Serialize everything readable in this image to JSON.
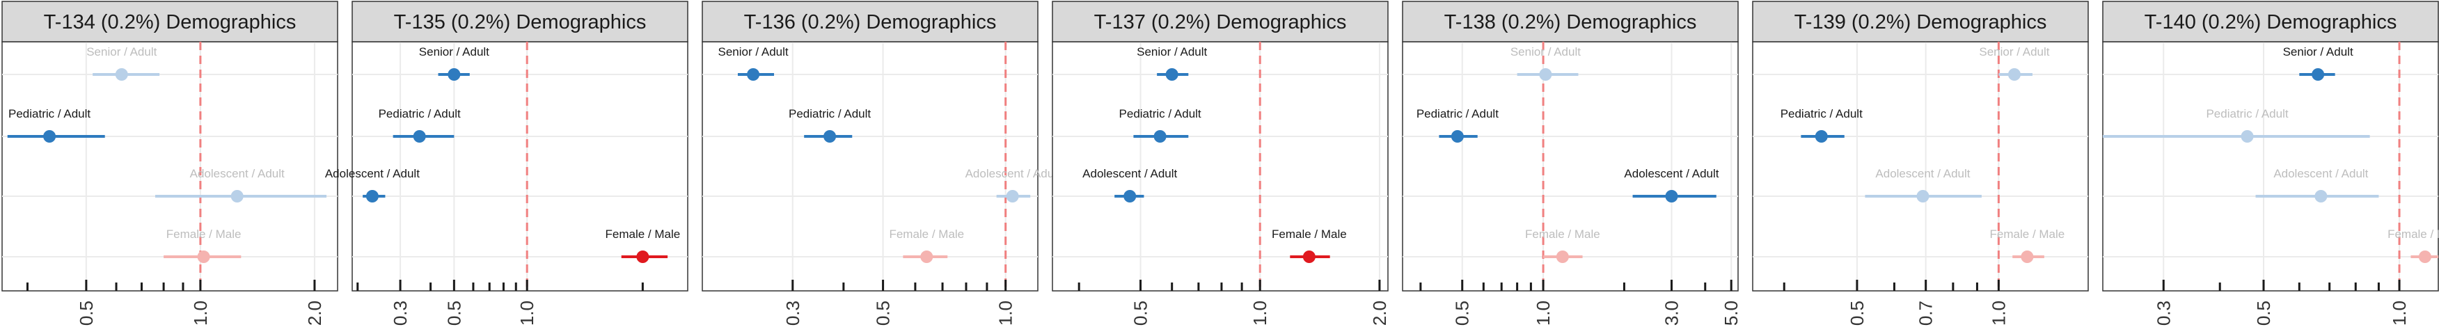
{
  "colors": {
    "strip_bg": "#d9d9d9",
    "blue": "#2e7bbf",
    "blue_faded": "#b8d0e8",
    "red": "#e0191f",
    "red_faded": "#f5b3b0",
    "ref_line": "#f08080",
    "grid": "#ebebeb",
    "panel_border": "#333333",
    "label_dark": "#1a1a1a",
    "label_faded": "#bdbdbd"
  },
  "chart_data": [
    {
      "type": "forest",
      "title": "T-134 (0.2%) Demographics",
      "x_scale": "log",
      "xlim": [
        0.3,
        2.3
      ],
      "reference_line": 1.0,
      "ticks": [
        0.5,
        1.0,
        2.0
      ],
      "tick_labels": [
        "0.5",
        "1.0",
        "2.0"
      ],
      "minor_ticks": [
        0.35,
        0.6,
        0.7,
        0.8,
        0.9
      ],
      "rows": [
        {
          "label": "Senior / Adult",
          "estimate": 0.62,
          "low": 0.52,
          "high": 0.78,
          "highlight": false,
          "color": "blue"
        },
        {
          "label": "Pediatric / Adult",
          "estimate": 0.4,
          "low": 0.31,
          "high": 0.56,
          "highlight": true,
          "color": "blue"
        },
        {
          "label": "Adolescent / Adult",
          "estimate": 1.25,
          "low": 0.76,
          "high": 2.15,
          "highlight": false,
          "color": "blue"
        },
        {
          "label": "Female / Male",
          "estimate": 1.02,
          "low": 0.8,
          "high": 1.28,
          "highlight": false,
          "color": "red"
        }
      ]
    },
    {
      "type": "forest",
      "title": "T-135 (0.2%) Demographics",
      "x_scale": "log",
      "xlim": [
        0.19,
        4.6
      ],
      "reference_line": 1.0,
      "ticks": [
        0.3,
        0.5,
        1.0
      ],
      "tick_labels": [
        "0.3",
        "0.5",
        "1.0"
      ],
      "minor_ticks": [
        0.2,
        0.4,
        0.6,
        0.7,
        0.8,
        0.9,
        3.0
      ],
      "rows": [
        {
          "label": "Senior / Adult",
          "estimate": 0.5,
          "low": 0.43,
          "high": 0.58,
          "highlight": true,
          "color": "blue"
        },
        {
          "label": "Pediatric / Adult",
          "estimate": 0.36,
          "low": 0.28,
          "high": 0.5,
          "highlight": true,
          "color": "blue"
        },
        {
          "label": "Adolescent / Adult",
          "estimate": 0.23,
          "low": 0.21,
          "high": 0.26,
          "highlight": true,
          "color": "blue"
        },
        {
          "label": "Female / Male",
          "estimate": 3.0,
          "low": 2.45,
          "high": 3.8,
          "highlight": true,
          "color": "red"
        }
      ]
    },
    {
      "type": "forest",
      "title": "T-136 (0.2%) Demographics",
      "x_scale": "log",
      "xlim": [
        0.18,
        1.2
      ],
      "reference_line": 1.0,
      "ticks": [
        0.3,
        0.5,
        1.0
      ],
      "tick_labels": [
        "0.3",
        "0.5",
        "1.0"
      ],
      "minor_ticks": [
        0.4,
        0.6,
        0.7,
        0.8,
        0.9
      ],
      "rows": [
        {
          "label": "Senior / Adult",
          "estimate": 0.24,
          "low": 0.22,
          "high": 0.27,
          "highlight": true,
          "color": "blue"
        },
        {
          "label": "Pediatric / Adult",
          "estimate": 0.37,
          "low": 0.32,
          "high": 0.42,
          "highlight": true,
          "color": "blue"
        },
        {
          "label": "Adolescent / Adult",
          "estimate": 1.04,
          "low": 0.95,
          "high": 1.15,
          "highlight": false,
          "color": "blue"
        },
        {
          "label": "Female / Male",
          "estimate": 0.64,
          "low": 0.56,
          "high": 0.72,
          "highlight": false,
          "color": "red"
        }
      ]
    },
    {
      "type": "forest",
      "title": "T-137 (0.2%) Demographics",
      "x_scale": "log",
      "xlim": [
        0.3,
        2.1
      ],
      "reference_line": 1.0,
      "ticks": [
        0.5,
        1.0,
        2.0
      ],
      "tick_labels": [
        "0.5",
        "1.0",
        "2.0"
      ],
      "minor_ticks": [
        0.35,
        0.6,
        0.7,
        0.8,
        0.9
      ],
      "rows": [
        {
          "label": "Senior / Adult",
          "estimate": 0.6,
          "low": 0.55,
          "high": 0.66,
          "highlight": true,
          "color": "blue"
        },
        {
          "label": "Pediatric / Adult",
          "estimate": 0.56,
          "low": 0.48,
          "high": 0.66,
          "highlight": true,
          "color": "blue"
        },
        {
          "label": "Adolescent / Adult",
          "estimate": 0.47,
          "low": 0.43,
          "high": 0.51,
          "highlight": true,
          "color": "blue"
        },
        {
          "label": "Female / Male",
          "estimate": 1.33,
          "low": 1.19,
          "high": 1.5,
          "highlight": true,
          "color": "red"
        }
      ]
    },
    {
      "type": "forest",
      "title": "T-138 (0.2%) Demographics",
      "x_scale": "log",
      "xlim": [
        0.3,
        5.3
      ],
      "reference_line": 1.0,
      "ticks": [
        0.5,
        1.0,
        3.0,
        5.0
      ],
      "tick_labels": [
        "0.5",
        "1.0",
        "3.0",
        "5.0"
      ],
      "minor_ticks": [
        0.35,
        0.6,
        0.7,
        0.8,
        0.9,
        2.0,
        4.0
      ],
      "rows": [
        {
          "label": "Senior / Adult",
          "estimate": 1.02,
          "low": 0.8,
          "high": 1.35,
          "highlight": false,
          "color": "blue"
        },
        {
          "label": "Pediatric / Adult",
          "estimate": 0.48,
          "low": 0.41,
          "high": 0.57,
          "highlight": true,
          "color": "blue"
        },
        {
          "label": "Adolescent / Adult",
          "estimate": 3.0,
          "low": 2.15,
          "high": 4.4,
          "highlight": true,
          "color": "blue"
        },
        {
          "label": "Female / Male",
          "estimate": 1.18,
          "low": 1.0,
          "high": 1.4,
          "highlight": false,
          "color": "red"
        }
      ]
    },
    {
      "type": "forest",
      "title": "T-139 (0.2%) Demographics",
      "x_scale": "log",
      "xlim": [
        0.3,
        1.55
      ],
      "reference_line": 1.0,
      "ticks": [
        0.5,
        0.7,
        1.0
      ],
      "tick_labels": [
        "0.5",
        "0.7",
        "1.0"
      ],
      "minor_ticks": [
        0.35,
        0.6,
        0.8,
        0.9
      ],
      "rows": [
        {
          "label": "Senior / Adult",
          "estimate": 1.08,
          "low": 1.0,
          "high": 1.18,
          "highlight": false,
          "color": "blue"
        },
        {
          "label": "Pediatric / Adult",
          "estimate": 0.42,
          "low": 0.38,
          "high": 0.47,
          "highlight": true,
          "color": "blue"
        },
        {
          "label": "Adolescent / Adult",
          "estimate": 0.69,
          "low": 0.52,
          "high": 0.92,
          "highlight": false,
          "color": "blue"
        },
        {
          "label": "Female / Male",
          "estimate": 1.15,
          "low": 1.07,
          "high": 1.25,
          "highlight": false,
          "color": "red"
        }
      ]
    },
    {
      "type": "forest",
      "title": "T-140 (0.2%) Demographics",
      "x_scale": "log",
      "xlim": [
        0.22,
        1.22
      ],
      "reference_line": 1.0,
      "ticks": [
        0.3,
        0.5,
        1.0
      ],
      "tick_labels": [
        "0.3",
        "0.5",
        "1.0"
      ],
      "minor_ticks": [
        0.4,
        0.6,
        0.7,
        0.8,
        0.9
      ],
      "rows": [
        {
          "label": "Senior / Adult",
          "estimate": 0.66,
          "low": 0.6,
          "high": 0.72,
          "highlight": true,
          "color": "blue"
        },
        {
          "label": "Pediatric / Adult",
          "estimate": 0.46,
          "low": 0.22,
          "high": 0.86,
          "highlight": false,
          "color": "blue"
        },
        {
          "label": "Adolescent / Adult",
          "estimate": 0.67,
          "low": 0.48,
          "high": 0.9,
          "highlight": false,
          "color": "blue"
        },
        {
          "label": "Female / Male",
          "estimate": 1.14,
          "low": 1.06,
          "high": 1.22,
          "highlight": false,
          "color": "red"
        }
      ]
    }
  ]
}
